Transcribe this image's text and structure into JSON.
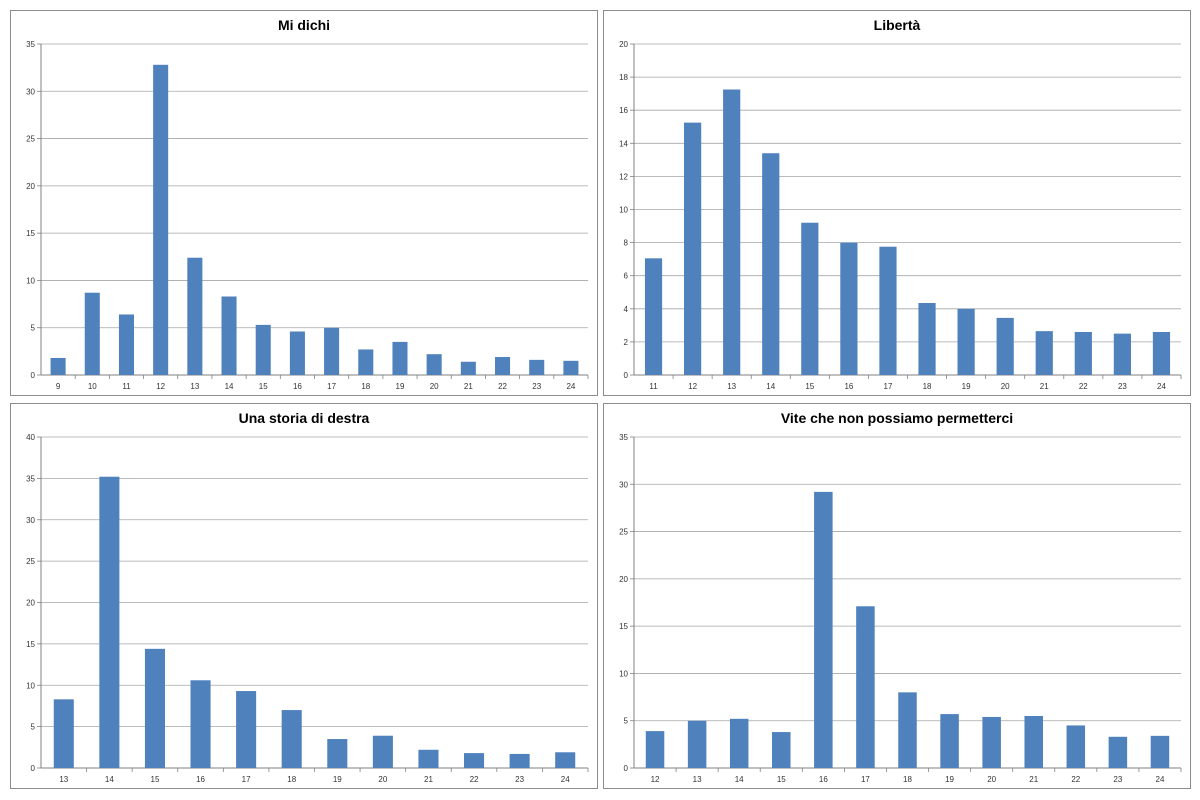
{
  "colors": {
    "bar": "#4f81bd",
    "grid": "#a6a6a6",
    "axis": "#808080",
    "border": "#8c8c8c"
  },
  "chart_data": [
    {
      "type": "bar",
      "title": "Mi dichi",
      "categories": [
        "9",
        "10",
        "11",
        "12",
        "13",
        "14",
        "15",
        "16",
        "17",
        "18",
        "19",
        "20",
        "21",
        "22",
        "23",
        "24"
      ],
      "values": [
        1.8,
        8.7,
        6.4,
        32.8,
        12.4,
        8.3,
        5.3,
        4.6,
        5.0,
        2.7,
        3.5,
        2.2,
        1.4,
        1.9,
        1.6,
        1.5
      ],
      "ylim": [
        0,
        35
      ],
      "yticks": [
        "0",
        "5",
        "10",
        "15",
        "20",
        "25",
        "30",
        "35"
      ],
      "grid": true,
      "legend": "none"
    },
    {
      "type": "bar",
      "title": "Libertà",
      "categories": [
        "11",
        "12",
        "13",
        "14",
        "15",
        "16",
        "17",
        "18",
        "19",
        "20",
        "21",
        "22",
        "23",
        "24"
      ],
      "values": [
        7.05,
        15.25,
        17.25,
        13.4,
        9.2,
        8.0,
        7.75,
        4.35,
        4.0,
        3.45,
        2.65,
        2.6,
        2.5,
        2.6
      ],
      "ylim": [
        0,
        20
      ],
      "yticks": [
        "0",
        "2",
        "4",
        "6",
        "8",
        "10",
        "12",
        "14",
        "16",
        "18",
        "20"
      ],
      "grid": true,
      "legend": "none"
    },
    {
      "type": "bar",
      "title": "Una storia di destra",
      "categories": [
        "13",
        "14",
        "15",
        "16",
        "17",
        "18",
        "19",
        "20",
        "21",
        "22",
        "23",
        "24"
      ],
      "values": [
        8.3,
        35.2,
        14.4,
        10.6,
        9.3,
        7.0,
        3.5,
        3.9,
        2.2,
        1.8,
        1.7,
        1.9
      ],
      "ylim": [
        0,
        40
      ],
      "yticks": [
        "0",
        "5",
        "10",
        "15",
        "20",
        "25",
        "30",
        "35",
        "40"
      ],
      "grid": true,
      "legend": "none"
    },
    {
      "type": "bar",
      "title": "Vite che non possiamo permetterci",
      "categories": [
        "12",
        "13",
        "14",
        "15",
        "16",
        "17",
        "18",
        "19",
        "20",
        "21",
        "22",
        "23",
        "24"
      ],
      "values": [
        3.9,
        5.0,
        5.2,
        3.8,
        29.2,
        17.1,
        8.0,
        5.7,
        5.4,
        5.5,
        4.5,
        3.3,
        3.4
      ],
      "ylim": [
        0,
        35
      ],
      "yticks": [
        "0",
        "5",
        "10",
        "15",
        "20",
        "25",
        "30",
        "35"
      ],
      "grid": true,
      "legend": "none"
    }
  ]
}
